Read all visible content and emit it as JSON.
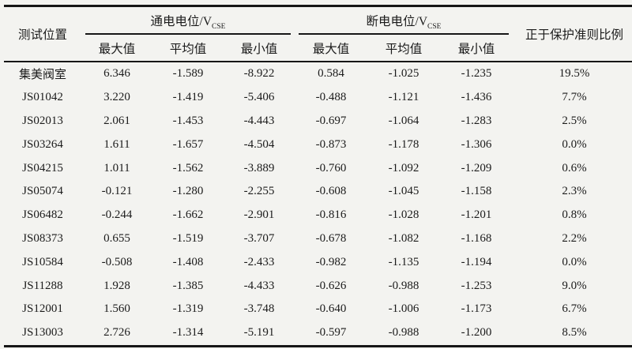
{
  "page": {
    "background_color": "#f3f3f0",
    "text_color": "#1b1b1b",
    "rule_color": "#161616"
  },
  "table": {
    "col1_header": "测试位置",
    "group1_header": "通电电位/V",
    "group1_subscript": "CSE",
    "group2_header": "断电电位/V",
    "group2_subscript": "CSE",
    "last_header": "正于保护准则比例",
    "sub_headers": [
      "最大值",
      "平均值",
      "最小值",
      "最大值",
      "平均值",
      "最小值"
    ],
    "rows": [
      [
        "集美阀室",
        "6.346",
        "-1.589",
        "-8.922",
        "0.584",
        "-1.025",
        "-1.235",
        "19.5%"
      ],
      [
        "JS01042",
        "3.220",
        "-1.419",
        "-5.406",
        "-0.488",
        "-1.121",
        "-1.436",
        "7.7%"
      ],
      [
        "JS02013",
        "2.061",
        "-1.453",
        "-4.443",
        "-0.697",
        "-1.064",
        "-1.283",
        "2.5%"
      ],
      [
        "JS03264",
        "1.611",
        "-1.657",
        "-4.504",
        "-0.873",
        "-1.178",
        "-1.306",
        "0.0%"
      ],
      [
        "JS04215",
        "1.011",
        "-1.562",
        "-3.889",
        "-0.760",
        "-1.092",
        "-1.209",
        "0.6%"
      ],
      [
        "JS05074",
        "-0.121",
        "-1.280",
        "-2.255",
        "-0.608",
        "-1.045",
        "-1.158",
        "2.3%"
      ],
      [
        "JS06482",
        "-0.244",
        "-1.662",
        "-2.901",
        "-0.816",
        "-1.028",
        "-1.201",
        "0.8%"
      ],
      [
        "JS08373",
        "0.655",
        "-1.519",
        "-3.707",
        "-0.678",
        "-1.082",
        "-1.168",
        "2.2%"
      ],
      [
        "JS10584",
        "-0.508",
        "-1.408",
        "-2.433",
        "-0.982",
        "-1.135",
        "-1.194",
        "0.0%"
      ],
      [
        "JS11288",
        "1.928",
        "-1.385",
        "-4.433",
        "-0.626",
        "-0.988",
        "-1.253",
        "9.0%"
      ],
      [
        "JS12001",
        "1.560",
        "-1.319",
        "-3.748",
        "-0.640",
        "-1.006",
        "-1.173",
        "6.7%"
      ],
      [
        "JS13003",
        "2.726",
        "-1.314",
        "-5.191",
        "-0.597",
        "-0.988",
        "-1.200",
        "8.5%"
      ]
    ]
  }
}
